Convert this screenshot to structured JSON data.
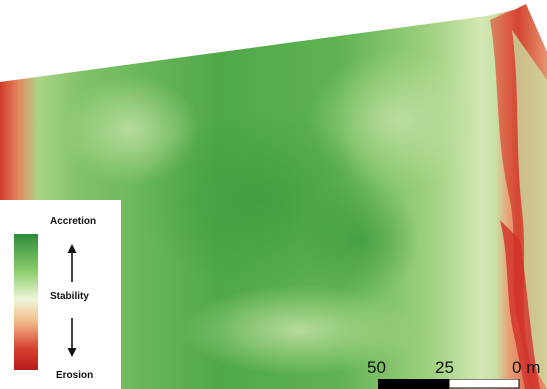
{
  "legend": {
    "top_label": "Accretion",
    "middle_label": "Stability",
    "bottom_label": "Erosion",
    "ramp_colors": [
      "#2e8b3a",
      "#8fcf6e",
      "#eef6d8",
      "#f2bd8a",
      "#d63d2c",
      "#b81d1d"
    ]
  },
  "scale_bar": {
    "labels": [
      "50",
      "25",
      "0"
    ],
    "unit": "m"
  },
  "colors": {
    "accretion": "#4ca64c",
    "stability": "#e8f2d4",
    "erosion": "#d0362a",
    "background": "#ffffff"
  }
}
